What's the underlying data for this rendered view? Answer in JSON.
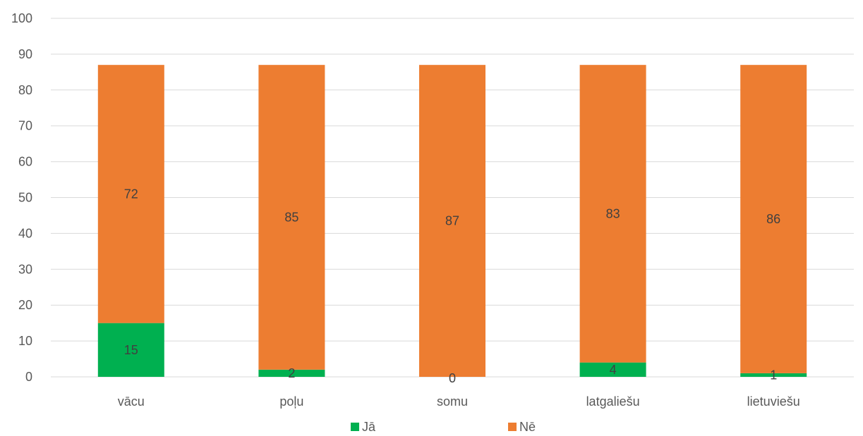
{
  "chart_data": {
    "type": "bar",
    "stacked": true,
    "categories": [
      "vācu",
      "poļu",
      "somu",
      "latgaliešu",
      "lietuviešu"
    ],
    "series": [
      {
        "name": "Jā",
        "values": [
          15,
          2,
          0,
          4,
          1
        ],
        "color": "#00B050"
      },
      {
        "name": "Nē",
        "values": [
          72,
          85,
          87,
          83,
          86
        ],
        "color": "#ED7D31"
      }
    ],
    "ylim": [
      0,
      100
    ],
    "yticks": [
      0,
      10,
      20,
      30,
      40,
      50,
      60,
      70,
      80,
      90,
      100
    ],
    "grid": true,
    "legend_position": "bottom",
    "data_labels": true,
    "gridline_color": "#D9D9D9",
    "title": "",
    "xlabel": "",
    "ylabel": ""
  }
}
